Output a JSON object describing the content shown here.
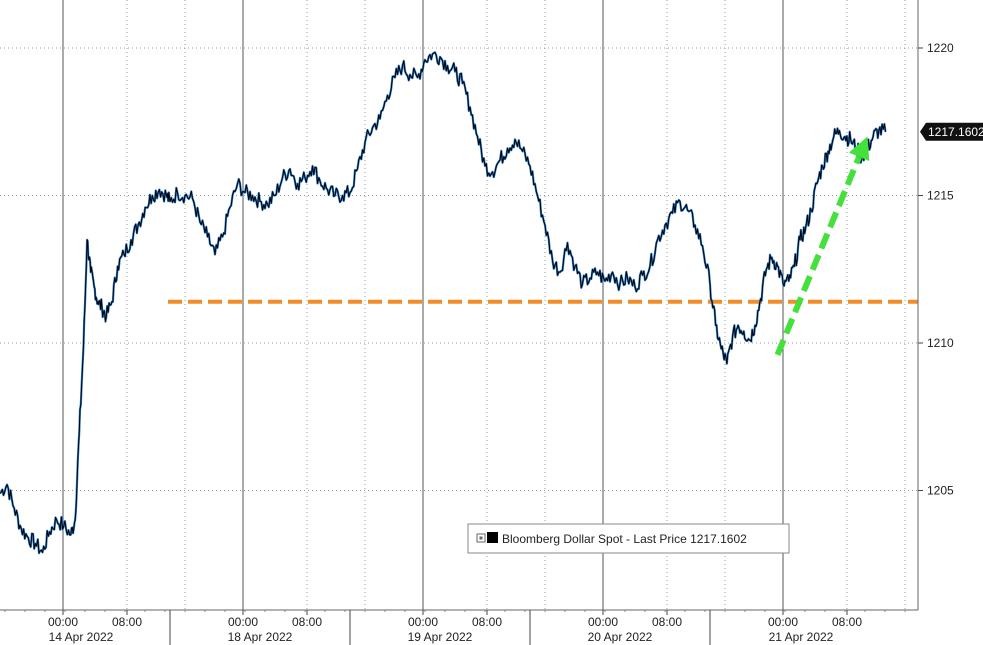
{
  "chart_data": {
    "type": "line",
    "title": "",
    "xlabel": "",
    "ylabel": "",
    "ylim": [
      1200.5,
      1221.5
    ],
    "y_ticks": [
      1205,
      1210,
      1215,
      1220
    ],
    "y_tick_labels": [
      "1205",
      "1210",
      "1215",
      "1220"
    ],
    "time_ticks": [
      "00:00",
      "08:00",
      "00:00",
      "08:00",
      "00:00",
      "08:00",
      "00:00",
      "08:00",
      "00:00",
      "08:00"
    ],
    "date_labels": [
      "14 Apr 2022",
      "18 Apr 2022",
      "19 Apr 2022",
      "20 Apr 2022",
      "21 Apr 2022"
    ],
    "grid": true,
    "series": [
      {
        "name": "Bloomberg Dollar Spot - Last Price",
        "color": "#000000",
        "highlight_color": "#2f7fd0",
        "points": [
          [
            0,
            1204.9
          ],
          [
            1,
            1205.2
          ],
          [
            2,
            1204.4
          ],
          [
            3,
            1203.7
          ],
          [
            4,
            1203.4
          ],
          [
            5,
            1203.2
          ],
          [
            6,
            1202.9
          ],
          [
            7,
            1203.6
          ],
          [
            8,
            1204.0
          ],
          [
            9,
            1203.8
          ],
          [
            10,
            1203.5
          ],
          [
            10.6,
            1204.0
          ],
          [
            11.2,
            1207.0
          ],
          [
            11.8,
            1210.0
          ],
          [
            12.3,
            1213.5
          ],
          [
            12.8,
            1212.4
          ],
          [
            13.3,
            1211.9
          ],
          [
            13.8,
            1211.4
          ],
          [
            14.4,
            1211.2
          ],
          [
            15.0,
            1210.9
          ],
          [
            15.8,
            1211.4
          ],
          [
            16.6,
            1212.6
          ],
          [
            17.5,
            1213.0
          ],
          [
            18.5,
            1213.5
          ],
          [
            19.5,
            1214.0
          ],
          [
            20.5,
            1214.6
          ],
          [
            21.5,
            1215.0
          ],
          [
            22.5,
            1215.2
          ],
          [
            23.5,
            1215.0
          ],
          [
            24.0,
            1214.8
          ],
          [
            25.0,
            1215.1
          ],
          [
            26.0,
            1215.0
          ],
          [
            27.0,
            1214.9
          ],
          [
            28.0,
            1214.1
          ],
          [
            29.0,
            1213.6
          ],
          [
            30.0,
            1213.0
          ],
          [
            31.0,
            1213.6
          ],
          [
            32.0,
            1214.6
          ],
          [
            33.0,
            1215.4
          ],
          [
            34.0,
            1215.1
          ],
          [
            35.0,
            1215.0
          ],
          [
            36.0,
            1214.8
          ],
          [
            37.0,
            1214.7
          ],
          [
            38.0,
            1215.0
          ],
          [
            39.0,
            1215.6
          ],
          [
            40.0,
            1215.9
          ],
          [
            41.0,
            1215.4
          ],
          [
            42.0,
            1215.6
          ],
          [
            43.0,
            1216.0
          ],
          [
            44.0,
            1215.5
          ],
          [
            45.0,
            1215.2
          ],
          [
            46.0,
            1215.0
          ],
          [
            47.0,
            1215.0
          ],
          [
            48.0,
            1215.1
          ],
          [
            49.0,
            1215.9
          ],
          [
            50.0,
            1216.8
          ],
          [
            51.0,
            1217.3
          ],
          [
            52.0,
            1217.6
          ],
          [
            53.0,
            1218.4
          ],
          [
            54.0,
            1219.0
          ],
          [
            55.0,
            1219.4
          ],
          [
            56.0,
            1219.1
          ],
          [
            57.0,
            1219.0
          ],
          [
            58.0,
            1219.6
          ],
          [
            59.0,
            1219.8
          ],
          [
            60.0,
            1219.7
          ],
          [
            61.0,
            1219.4
          ],
          [
            62.0,
            1219.2
          ],
          [
            63.0,
            1218.8
          ],
          [
            64.0,
            1218.0
          ],
          [
            65.0,
            1217.0
          ],
          [
            66.0,
            1216.0
          ],
          [
            67.0,
            1215.8
          ],
          [
            68.0,
            1216.2
          ],
          [
            69.0,
            1216.6
          ],
          [
            70.0,
            1216.9
          ],
          [
            71.0,
            1216.5
          ],
          [
            72.0,
            1216.0
          ],
          [
            73.0,
            1215.0
          ],
          [
            74.0,
            1214.0
          ],
          [
            75.0,
            1212.8
          ],
          [
            76.0,
            1212.4
          ],
          [
            77.0,
            1213.4
          ],
          [
            78.0,
            1212.6
          ],
          [
            79.0,
            1212.0
          ],
          [
            80.0,
            1212.2
          ],
          [
            81.0,
            1212.4
          ],
          [
            82.0,
            1212.1
          ],
          [
            83.0,
            1212.4
          ],
          [
            84.0,
            1212.0
          ],
          [
            85.0,
            1212.2
          ],
          [
            86.0,
            1211.9
          ],
          [
            87.0,
            1212.3
          ],
          [
            88.0,
            1212.6
          ],
          [
            89.0,
            1213.5
          ],
          [
            90.0,
            1214.0
          ],
          [
            91.0,
            1214.4
          ],
          [
            92.0,
            1214.8
          ],
          [
            93.0,
            1214.5
          ],
          [
            94.0,
            1214.0
          ],
          [
            95.0,
            1213.3
          ],
          [
            96.0,
            1212.0
          ],
          [
            96.5,
            1210.6
          ],
          [
            97.0,
            1209.8
          ],
          [
            97.5,
            1209.3
          ],
          [
            98.0,
            1210.2
          ],
          [
            98.5,
            1210.6
          ],
          [
            99.0,
            1210.4
          ],
          [
            99.5,
            1210.1
          ],
          [
            100.0,
            1210.6
          ],
          [
            100.5,
            1211.5
          ],
          [
            101.0,
            1212.5
          ],
          [
            101.5,
            1212.9
          ],
          [
            102.0,
            1212.6
          ],
          [
            102.5,
            1212.0
          ],
          [
            103.0,
            1212.1
          ],
          [
            103.5,
            1212.6
          ],
          [
            104.0,
            1213.5
          ],
          [
            104.5,
            1213.9
          ],
          [
            105.0,
            1214.5
          ],
          [
            105.5,
            1215.4
          ],
          [
            106.0,
            1216.0
          ],
          [
            106.5,
            1216.5
          ],
          [
            107.0,
            1217.0
          ],
          [
            107.5,
            1217.2
          ],
          [
            108.0,
            1217.0
          ],
          [
            108.5,
            1216.9
          ],
          [
            109.0,
            1216.6
          ],
          [
            109.5,
            1216.3
          ],
          [
            110.0,
            1216.6
          ],
          [
            110.5,
            1217.0
          ],
          [
            111.0,
            1217.2
          ],
          [
            111.6,
            1217.16
          ]
        ]
      }
    ],
    "reference_lines": [
      {
        "y": 1211.4,
        "color": "#f28c28",
        "style": "dashed"
      }
    ],
    "annotation_arrow": {
      "from": [
        102,
        1209.6
      ],
      "to": [
        110,
        1217.0
      ],
      "color": "#44e03c",
      "style": "dashed"
    },
    "last_value_label": "1217.1602",
    "legend": {
      "text": "Bloomberg Dollar Spot - Last Price 1217.1602",
      "placement": "bottom-right"
    }
  }
}
